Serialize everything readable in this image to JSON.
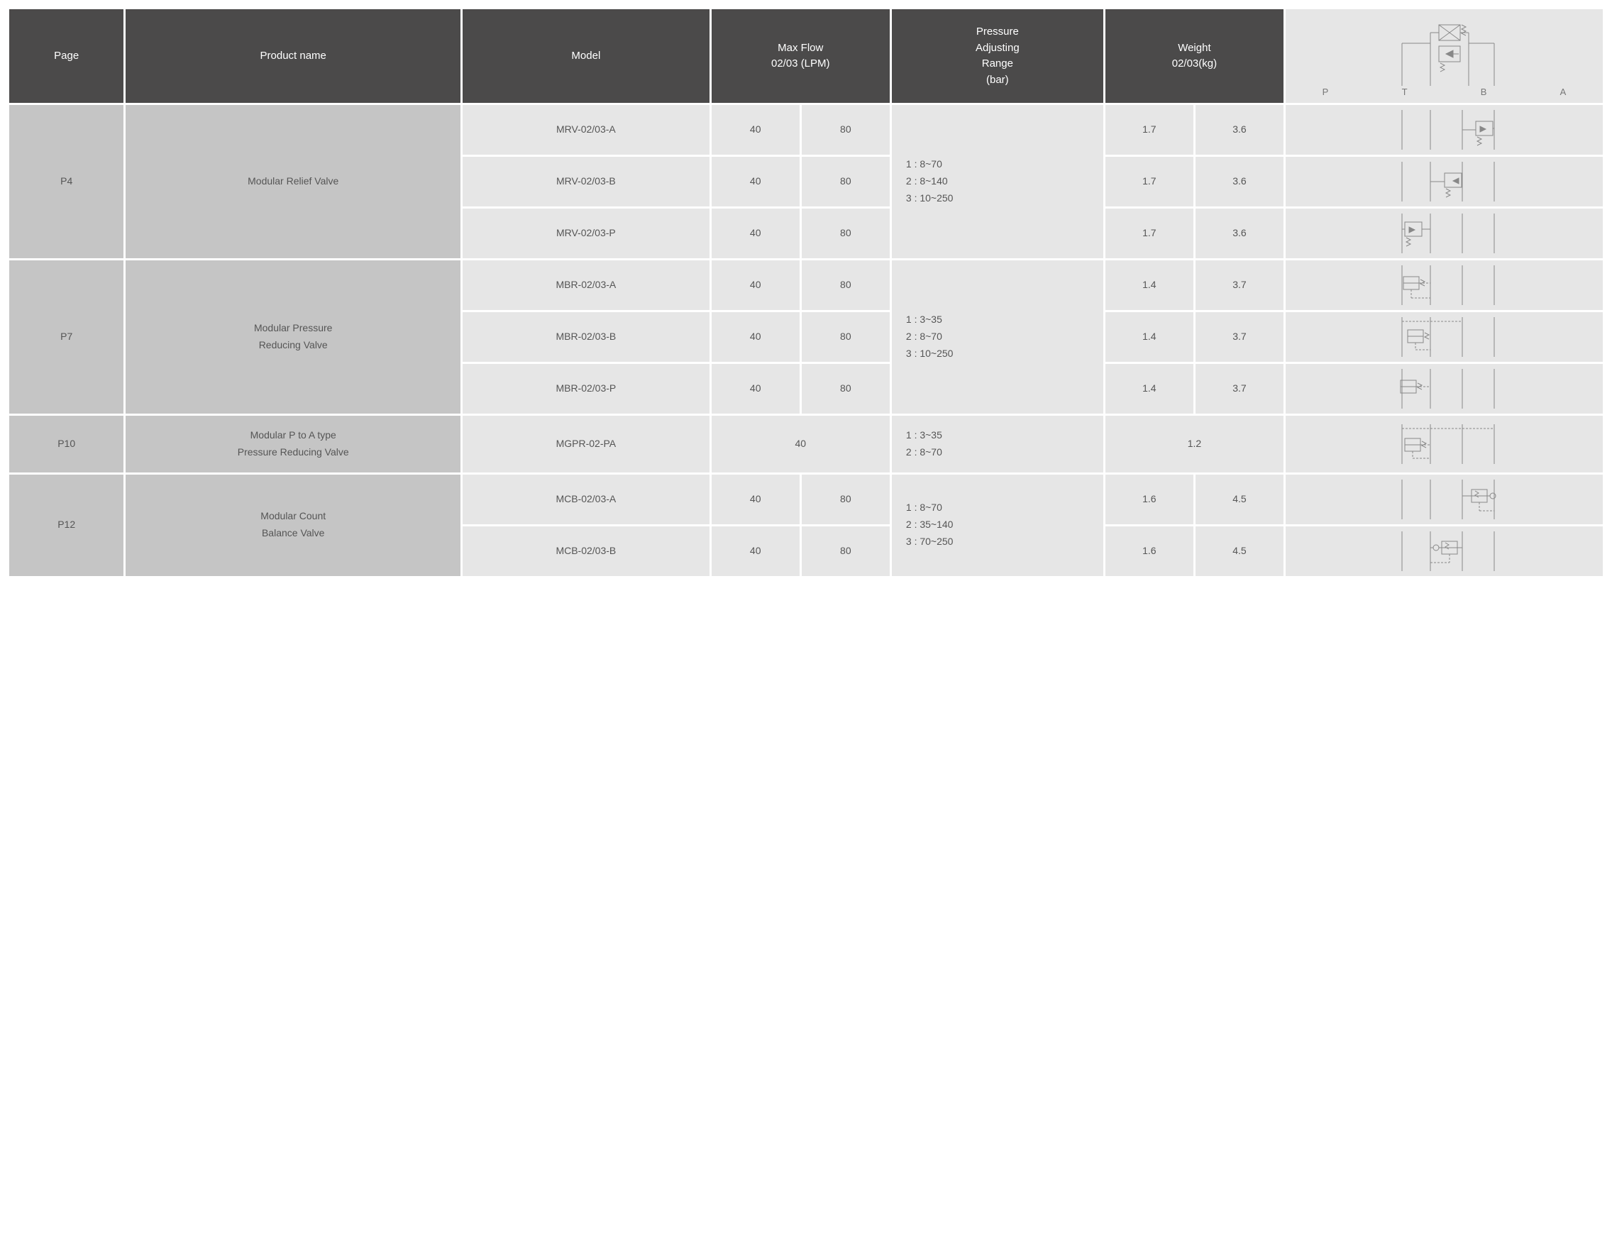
{
  "colors": {
    "header_bg": "#4b4a4a",
    "header_fg": "#ffffff",
    "cell_bg": "#e6e6e6",
    "merge_bg": "#c5c5c5",
    "text": "#555555",
    "line": "#888888"
  },
  "headers": {
    "page": "Page",
    "product": "Product name",
    "model": "Model",
    "maxflow": "Max Flow\n02/03 (LPM)",
    "pressure": "Pressure\nAdjusting\nRange\n(bar)",
    "weight": "Weight\n02/03(kg)",
    "ports": [
      "P",
      "T",
      "B",
      "A"
    ]
  },
  "groups": [
    {
      "page": "P4",
      "product": "Modular Relief  Valve",
      "pressure": "1 : 8~70\n2 : 8~140\n3 : 10~250",
      "rows": [
        {
          "model": "MRV-02/03-A",
          "flow02": "40",
          "flow03": "80",
          "w02": "1.7",
          "w03": "3.6"
        },
        {
          "model": "MRV-02/03-B",
          "flow02": "40",
          "flow03": "80",
          "w02": "1.7",
          "w03": "3.6"
        },
        {
          "model": "MRV-02/03-P",
          "flow02": "40",
          "flow03": "80",
          "w02": "1.7",
          "w03": "3.6"
        }
      ]
    },
    {
      "page": "P7",
      "product": "Modular Pressure\nReducing Valve",
      "pressure": "1 : 3~35\n2 : 8~70\n3 : 10~250",
      "rows": [
        {
          "model": "MBR-02/03-A",
          "flow02": "40",
          "flow03": "80",
          "w02": "1.4",
          "w03": "3.7"
        },
        {
          "model": "MBR-02/03-B",
          "flow02": "40",
          "flow03": "80",
          "w02": "1.4",
          "w03": "3.7"
        },
        {
          "model": "MBR-02/03-P",
          "flow02": "40",
          "flow03": "80",
          "w02": "1.4",
          "w03": "3.7"
        }
      ]
    },
    {
      "page": "P10",
      "product": "Modular P to A type\nPressure Reducing Valve",
      "pressure": "1 : 3~35\n2 : 8~70",
      "merged_flow": "40",
      "merged_weight": "1.2",
      "rows": [
        {
          "model": "MGPR-02-PA"
        }
      ]
    },
    {
      "page": "P12",
      "product": "Modular Count\nBalance Valve",
      "pressure": "1 : 8~70\n2 : 35~140\n3 : 70~250",
      "rows": [
        {
          "model": "MCB-02/03-A",
          "flow02": "40",
          "flow03": "80",
          "w02": "1.6",
          "w03": "4.5"
        },
        {
          "model": "MCB-02/03-B",
          "flow02": "40",
          "flow03": "80",
          "w02": "1.6",
          "w03": "4.5"
        }
      ]
    }
  ]
}
